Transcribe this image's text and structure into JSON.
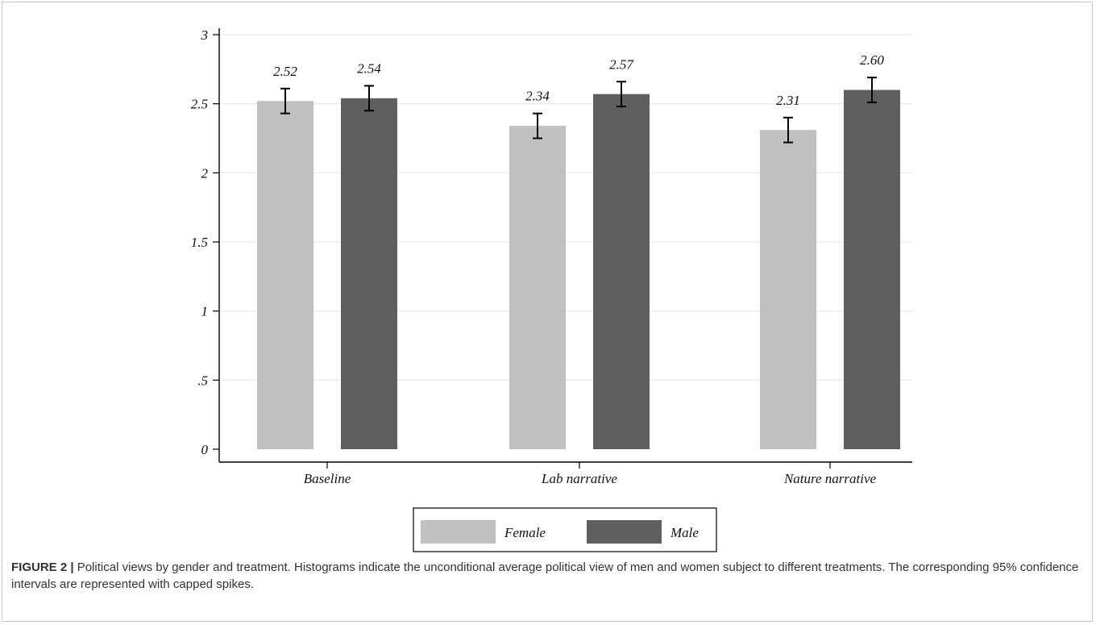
{
  "figure": {
    "label": "FIGURE 2 |",
    "caption": " Political views by gender and treatment. Histograms indicate the unconditional average political view of men and women subject to different treatments. The corresponding 95% confidence intervals are represented with capped spikes."
  },
  "colors": {
    "female": "#c0c0c0",
    "male": "#5f5f5f",
    "grid": "#e6e6e6",
    "axis": "#000000"
  },
  "chart_data": {
    "type": "bar",
    "categories": [
      "Baseline",
      "Lab narrative",
      "Nature narrative"
    ],
    "series": [
      {
        "name": "Female",
        "values": [
          2.52,
          2.34,
          2.31
        ],
        "ci_low": [
          2.43,
          2.25,
          2.22
        ],
        "ci_high": [
          2.61,
          2.43,
          2.4
        ],
        "labels": [
          "2.52",
          "2.34",
          "2.31"
        ]
      },
      {
        "name": "Male",
        "values": [
          2.54,
          2.57,
          2.6
        ],
        "ci_low": [
          2.45,
          2.48,
          2.51
        ],
        "ci_high": [
          2.63,
          2.66,
          2.69
        ],
        "labels": [
          "2.54",
          "2.57",
          "2.60"
        ]
      }
    ],
    "yticks": [
      0,
      0.5,
      1,
      1.5,
      2,
      2.5,
      3
    ],
    "ytick_labels": [
      "0",
      ".5",
      "1",
      "1.5",
      "2",
      "2.5",
      "3"
    ],
    "ylim": [
      0,
      3
    ],
    "grid": true,
    "legend": {
      "position": "bottom",
      "entries": [
        "Female",
        "Male"
      ]
    },
    "error_bars": "95% confidence intervals"
  }
}
